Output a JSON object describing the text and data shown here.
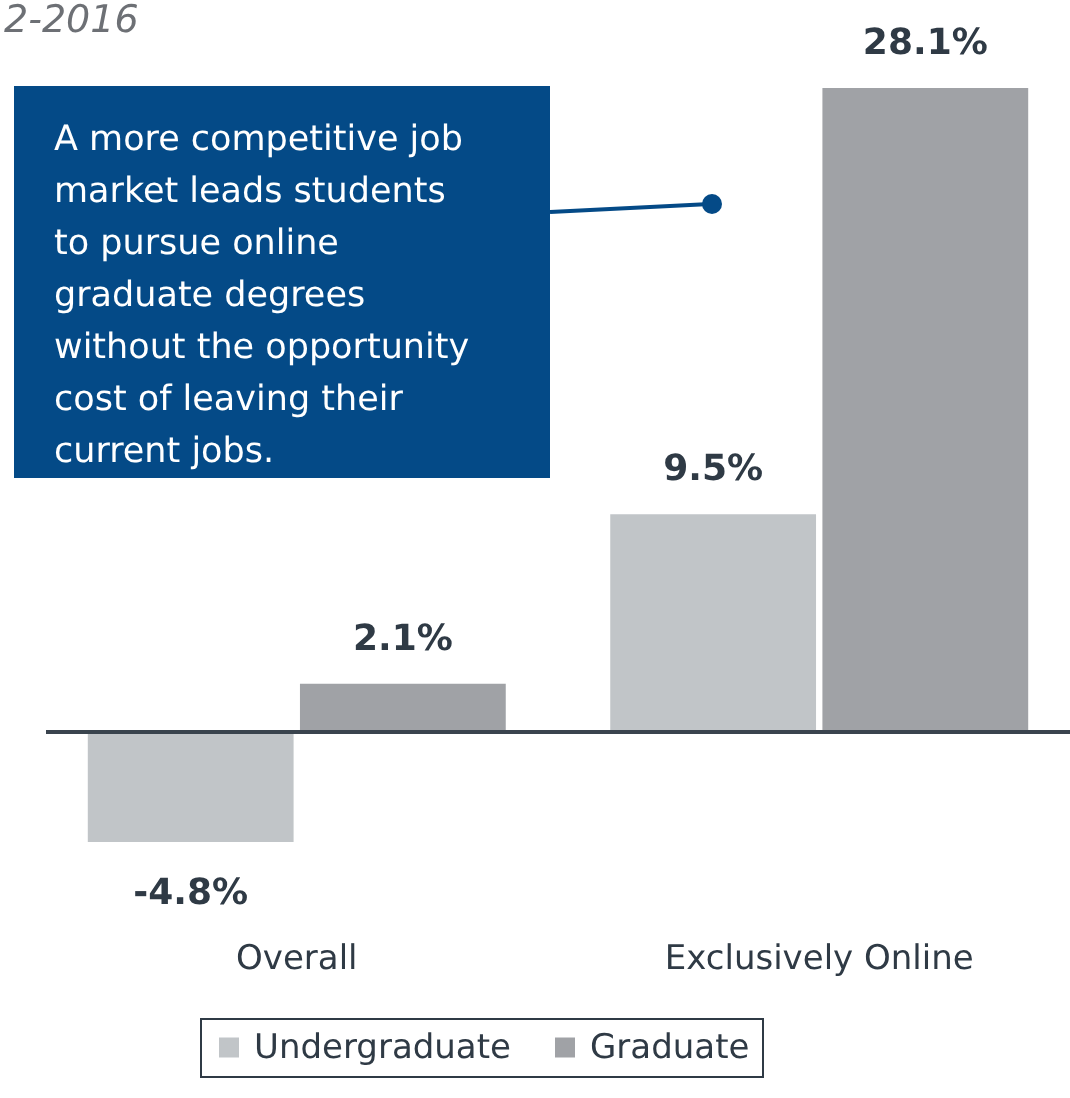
{
  "chart_data": {
    "type": "bar",
    "title": "2-2016",
    "categories": [
      "Overall",
      "Exclusively Online"
    ],
    "series": [
      {
        "name": "Undergraduate",
        "color": "#c1c5c8",
        "values": [
          -4.8,
          9.5
        ],
        "value_labels": [
          "-4.8%",
          "9.5%"
        ]
      },
      {
        "name": "Graduate",
        "color": "#a0a2a6",
        "values": [
          2.1,
          28.1
        ],
        "value_labels": [
          "2.1%",
          "28.1%"
        ]
      }
    ],
    "annotations": [
      "A more competitive job market leads students to pursue online graduate degrees without the opportunity cost of leaving their current jobs."
    ],
    "legend": "bottom",
    "tick_labels": "x"
  }
}
